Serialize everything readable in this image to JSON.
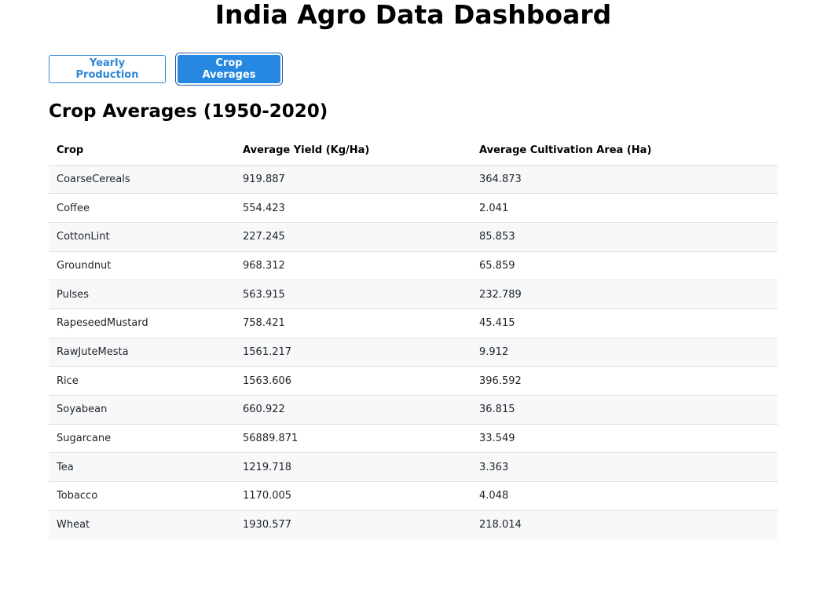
{
  "app": {
    "title": "India Agro Data Dashboard"
  },
  "tabs": [
    {
      "label": "Yearly Production",
      "active": false
    },
    {
      "label": "Crop Averages",
      "active": true
    }
  ],
  "section": {
    "title": "Crop Averages (1950-2020)"
  },
  "table": {
    "headers": [
      "Crop",
      "Average Yield (Kg/Ha)",
      "Average Cultivation Area (Ha)"
    ],
    "rows": [
      [
        "CoarseCereals",
        "919.887",
        "364.873"
      ],
      [
        "Coffee",
        "554.423",
        "2.041"
      ],
      [
        "CottonLint",
        "227.245",
        "85.853"
      ],
      [
        "Groundnut",
        "968.312",
        "65.859"
      ],
      [
        "Pulses",
        "563.915",
        "232.789"
      ],
      [
        "RapeseedMustard",
        "758.421",
        "45.415"
      ],
      [
        "RawJuteMesta",
        "1561.217",
        "9.912"
      ],
      [
        "Rice",
        "1563.606",
        "396.592"
      ],
      [
        "Soyabean",
        "660.922",
        "36.815"
      ],
      [
        "Sugarcane",
        "56889.871",
        "33.549"
      ],
      [
        "Tea",
        "1219.718",
        "3.363"
      ],
      [
        "Tobacco",
        "1170.005",
        "4.048"
      ],
      [
        "Wheat",
        "1930.577",
        "218.014"
      ]
    ]
  },
  "colors": {
    "accent": "#2688e0",
    "accent_outline": "#2f86d6",
    "row_stripe": "#f7f8f9",
    "border": "#dee2e6"
  }
}
